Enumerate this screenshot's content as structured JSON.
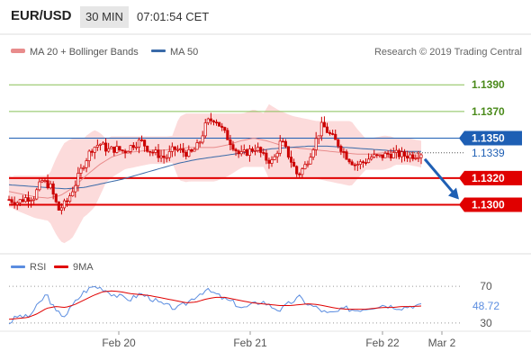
{
  "header": {
    "symbol": "EUR/USD",
    "timeframe": "30 MIN",
    "time": "07:01:54 CET"
  },
  "legend": {
    "ma20": "MA 20 + Bollinger Bands",
    "ma50": "MA 50",
    "research": "Research © 2019 Trading Central",
    "rsi": "RSI",
    "ma9": "9MA"
  },
  "colors": {
    "candle": "#cc0000",
    "bollinger_fill": "#fbd5d5",
    "ma20": "#e88c8c",
    "ma50": "#3a6aa8",
    "resistance": "#88c057",
    "pivot": "#1e5fb4",
    "support": "#e00000",
    "rsi": "#5b8de0",
    "rsi_ma": "#e00000",
    "price_label": "#1e5fb4"
  },
  "chart_data": [
    {
      "type": "candlestick",
      "ylim": [
        1.127,
        1.1405
      ],
      "x_labels": [
        "Feb 20",
        "Feb 21",
        "Feb 22",
        "Mar 2"
      ],
      "levels": [
        {
          "label": "1.1390",
          "value": 1.139,
          "kind": "resistance"
        },
        {
          "label": "1.1370",
          "value": 1.137,
          "kind": "resistance"
        },
        {
          "label": "1.1350",
          "value": 1.135,
          "kind": "pivot"
        },
        {
          "label": "1.1320",
          "value": 1.132,
          "kind": "support"
        },
        {
          "label": "1.1300",
          "value": 1.13,
          "kind": "support"
        }
      ],
      "last_price": {
        "label": "1.1339",
        "value": 1.1339
      },
      "close_path": [
        1.1304,
        1.1302,
        1.1305,
        1.1306,
        1.1318,
        1.1314,
        1.1296,
        1.1302,
        1.1315,
        1.133,
        1.1342,
        1.1346,
        1.1341,
        1.1342,
        1.134,
        1.1345,
        1.1348,
        1.1341,
        1.1338,
        1.1335,
        1.1342,
        1.134,
        1.1338,
        1.1345,
        1.1362,
        1.1365,
        1.1355,
        1.1346,
        1.1337,
        1.134,
        1.1343,
        1.1335,
        1.1332,
        1.1348,
        1.1336,
        1.1322,
        1.133,
        1.1345,
        1.136,
        1.1352,
        1.1345,
        1.1336,
        1.133,
        1.1332,
        1.1336,
        1.1336,
        1.1338,
        1.1338,
        1.1337,
        1.1337,
        1.1339
      ],
      "ma20_path": [
        1.131,
        1.1308,
        1.1306,
        1.1305,
        1.1307,
        1.1313,
        1.1322,
        1.133,
        1.1336,
        1.1339,
        1.134,
        1.1341,
        1.1341,
        1.1342,
        1.1343,
        1.1343,
        1.1343,
        1.1345,
        1.1348,
        1.135,
        1.1348,
        1.1345,
        1.1343,
        1.1342,
        1.1341,
        1.134,
        1.1339,
        1.1338,
        1.1338,
        1.1339,
        1.134,
        1.134,
        1.1338
      ],
      "ma50_path": [
        1.1315,
        1.1314,
        1.1313,
        1.1312,
        1.1313,
        1.1316,
        1.1319,
        1.1323,
        1.1327,
        1.1331,
        1.1334,
        1.1336,
        1.1338,
        1.134,
        1.1342,
        1.1343,
        1.1344,
        1.1344,
        1.1343,
        1.1342,
        1.1341,
        1.134,
        1.134
      ],
      "forecast": {
        "from": 1.1337,
        "to": 1.13
      }
    },
    {
      "type": "line",
      "name": "RSI",
      "ylim": [
        22,
        80
      ],
      "levels": [
        {
          "label": "70",
          "value": 70
        },
        {
          "label": "30",
          "value": 30
        }
      ],
      "last_value": {
        "label": "48.72",
        "value": 48.72
      },
      "rsi": [
        30,
        38,
        36,
        48,
        62,
        42,
        38,
        52,
        64,
        70,
        68,
        62,
        58,
        56,
        62,
        58,
        52,
        48,
        46,
        52,
        60,
        66,
        62,
        56,
        52,
        46,
        50,
        54,
        48,
        44,
        52,
        58,
        50,
        46,
        40,
        42,
        46,
        44,
        46,
        48,
        50,
        48,
        47,
        49,
        48.7
      ],
      "ma9": [
        34,
        35,
        36,
        40,
        46,
        48,
        47,
        50,
        55,
        60,
        64,
        65,
        64,
        62,
        61,
        60,
        58,
        56,
        54,
        52,
        53,
        56,
        58,
        58,
        56,
        54,
        52,
        51,
        50,
        49,
        49,
        50,
        51,
        50,
        48,
        46,
        45,
        45,
        45,
        46,
        47,
        47,
        48,
        48,
        48.5
      ]
    }
  ]
}
